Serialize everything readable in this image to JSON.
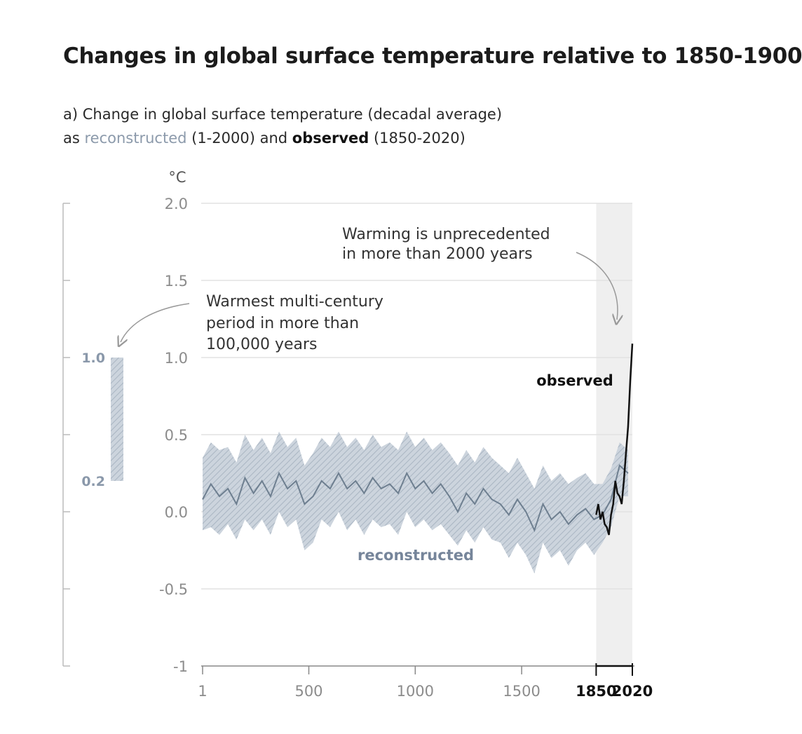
{
  "title": "Changes in global surface temperature relative to 1850-1900",
  "subtitle": {
    "line1": "a) Change in global surface temperature (decadal average)",
    "prefix": "as ",
    "reconstructed_word": "reconstructed",
    "reconstructed_range": " (1-2000) and ",
    "observed_word": "observed",
    "observed_range": " (1850-2020)"
  },
  "colors": {
    "reconstructed_line": "#6e7f90",
    "reconstructed_band": "#c3ccd6",
    "observed_line": "#111111",
    "shade": "#efefef",
    "grid": "#e2e2e2"
  },
  "chart_data": {
    "type": "line",
    "ylabel": "°C",
    "ylim": [
      -1,
      2
    ],
    "xlim": [
      1,
      2020
    ],
    "y_ticks": [
      "2.0",
      "1.5",
      "1.0",
      "0.5",
      "0.0",
      "-0.5",
      "-1"
    ],
    "x_ticks": [
      "1",
      "500",
      "1000",
      "1500"
    ],
    "x_ticks_bold": [
      "1850",
      "2020"
    ],
    "shaded_period": [
      1850,
      2020
    ],
    "series": [
      {
        "name": "reconstructed",
        "x": [
          1,
          40,
          80,
          120,
          160,
          200,
          240,
          280,
          320,
          360,
          400,
          440,
          480,
          520,
          560,
          600,
          640,
          680,
          720,
          760,
          800,
          840,
          880,
          920,
          960,
          1000,
          1040,
          1080,
          1120,
          1160,
          1200,
          1240,
          1280,
          1320,
          1360,
          1400,
          1440,
          1480,
          1520,
          1560,
          1600,
          1640,
          1680,
          1720,
          1760,
          1800,
          1840,
          1880,
          1920,
          1960,
          2000
        ],
        "values": [
          0.08,
          0.18,
          0.1,
          0.15,
          0.05,
          0.22,
          0.12,
          0.2,
          0.1,
          0.25,
          0.15,
          0.2,
          0.05,
          0.1,
          0.2,
          0.15,
          0.25,
          0.15,
          0.2,
          0.12,
          0.22,
          0.15,
          0.18,
          0.12,
          0.25,
          0.15,
          0.2,
          0.12,
          0.18,
          0.1,
          0.0,
          0.12,
          0.05,
          0.15,
          0.08,
          0.05,
          -0.02,
          0.08,
          0.0,
          -0.12,
          0.05,
          -0.05,
          0.0,
          -0.08,
          -0.02,
          0.02,
          -0.05,
          -0.02,
          0.08,
          0.3,
          0.25
        ],
        "lower": [
          -0.12,
          -0.1,
          -0.15,
          -0.08,
          -0.18,
          -0.05,
          -0.12,
          -0.05,
          -0.15,
          0.0,
          -0.1,
          -0.05,
          -0.25,
          -0.2,
          -0.05,
          -0.1,
          0.0,
          -0.12,
          -0.05,
          -0.15,
          -0.05,
          -0.1,
          -0.08,
          -0.15,
          0.0,
          -0.1,
          -0.05,
          -0.12,
          -0.08,
          -0.15,
          -0.22,
          -0.12,
          -0.2,
          -0.1,
          -0.18,
          -0.2,
          -0.3,
          -0.2,
          -0.28,
          -0.4,
          -0.2,
          -0.3,
          -0.25,
          -0.35,
          -0.25,
          -0.2,
          -0.28,
          -0.2,
          -0.1,
          0.1,
          0.1
        ],
        "upper": [
          0.35,
          0.45,
          0.4,
          0.42,
          0.32,
          0.5,
          0.4,
          0.48,
          0.38,
          0.52,
          0.42,
          0.48,
          0.3,
          0.38,
          0.48,
          0.42,
          0.52,
          0.42,
          0.48,
          0.4,
          0.5,
          0.42,
          0.45,
          0.4,
          0.52,
          0.42,
          0.48,
          0.4,
          0.45,
          0.38,
          0.3,
          0.4,
          0.32,
          0.42,
          0.35,
          0.3,
          0.25,
          0.35,
          0.25,
          0.15,
          0.3,
          0.2,
          0.25,
          0.18,
          0.22,
          0.25,
          0.18,
          0.18,
          0.28,
          0.45,
          0.4
        ]
      },
      {
        "name": "observed",
        "x": [
          1850,
          1860,
          1870,
          1880,
          1890,
          1900,
          1910,
          1920,
          1930,
          1940,
          1950,
          1960,
          1970,
          1980,
          1990,
          2000,
          2010,
          2020
        ],
        "values": [
          -0.02,
          0.05,
          -0.05,
          0.0,
          -0.08,
          -0.1,
          -0.15,
          -0.02,
          0.05,
          0.2,
          0.12,
          0.1,
          0.05,
          0.2,
          0.38,
          0.55,
          0.85,
          1.09
        ]
      }
    ],
    "series_labels": [
      "reconstructed",
      "observed"
    ],
    "annotations": [
      {
        "text_lines": [
          "Warming is unprecedented",
          "in more than 2000 years"
        ]
      },
      {
        "text_lines": [
          "Warmest multi-century",
          "period in more than",
          "100,000 years"
        ]
      }
    ],
    "side_bar": {
      "upper": 1.0,
      "lower": 0.2,
      "upper_label": "1.0",
      "lower_label": "0.2"
    }
  }
}
